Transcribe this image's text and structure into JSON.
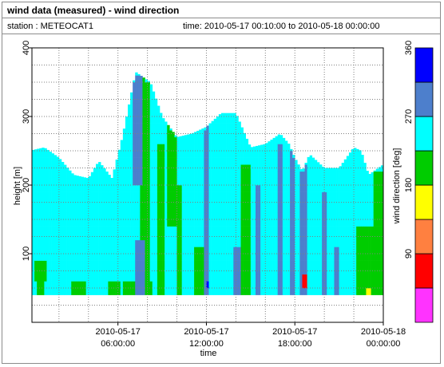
{
  "window": {
    "title": "wind data (measured) - wind direction",
    "station": "station : METEOCAT1",
    "time_range": "time: 2010-05-17 00:10:00 to 2010-05-18 00:00:00"
  },
  "chart_data": {
    "type": "heatmap",
    "xlabel": "time",
    "ylabel": "height [m]",
    "colorbar_label": "wind direction [deg]",
    "x_range": [
      "2010-05-17 00:10:00",
      "2010-05-18 00:00:00"
    ],
    "ylim": [
      0,
      400
    ],
    "y_ticks": [
      100,
      200,
      300,
      400
    ],
    "x_ticks": [
      {
        "line1": "2010-05-17",
        "line2": "06:00:00",
        "hour": 6
      },
      {
        "line1": "2010-05-17",
        "line2": "12:00:00",
        "hour": 12
      },
      {
        "line1": "2010-05-17",
        "line2": "18:00:00",
        "hour": 18
      },
      {
        "line1": "2010-05-18",
        "line2": "00:00:00",
        "hour": 24
      }
    ],
    "grid": true,
    "colorbar": {
      "range": [
        0,
        360
      ],
      "ticks": [
        90,
        180,
        270,
        360
      ],
      "bins": [
        {
          "from": 0,
          "to": 45,
          "color": "#ff33ff"
        },
        {
          "from": 45,
          "to": 90,
          "color": "#ff0000"
        },
        {
          "from": 90,
          "to": 135,
          "color": "#ff8040"
        },
        {
          "from": 135,
          "to": 180,
          "color": "#ffff00"
        },
        {
          "from": 180,
          "to": 225,
          "color": "#00cc00"
        },
        {
          "from": 225,
          "to": 270,
          "color": "#00ffff"
        },
        {
          "from": 270,
          "to": 315,
          "color": "#4d7fcc"
        },
        {
          "from": 315,
          "to": 360,
          "color": "#0000ff"
        }
      ]
    },
    "data": {
      "base_height_m": 40,
      "dominant_direction_deg": 250,
      "top_height_profile": {
        "hour": [
          0,
          1,
          2,
          3,
          4,
          4.7,
          5.6,
          6.3,
          7.2,
          8.2,
          9,
          10,
          11,
          12,
          13,
          14,
          15,
          16,
          17,
          17.6,
          18,
          18.5,
          19,
          20,
          21,
          22,
          22.5,
          23,
          24
        ],
        "height_m": [
          250,
          255,
          240,
          215,
          210,
          235,
          210,
          270,
          365,
          350,
          300,
          270,
          275,
          285,
          305,
          305,
          255,
          260,
          275,
          260,
          240,
          220,
          245,
          225,
          225,
          255,
          250,
          215,
          230
        ]
      },
      "patches": [
        {
          "hour": [
            0.3,
            1.1
          ],
          "height_m": [
            65,
            95
          ],
          "dir": 200
        },
        {
          "hour": [
            0.5,
            1.0
          ],
          "height_m": [
            45,
            65
          ],
          "dir": 200
        },
        {
          "hour": [
            2.8,
            3.8
          ],
          "height_m": [
            40,
            65
          ],
          "dir": 200
        },
        {
          "hour": [
            5.4,
            6.1
          ],
          "height_m": [
            40,
            60
          ],
          "dir": 200
        },
        {
          "hour": [
            6.3,
            8.4
          ],
          "height_m": [
            40,
            60
          ],
          "dir": 200
        },
        {
          "hour": [
            7.5,
            8.2
          ],
          "height_m": [
            60,
            360
          ],
          "dir": 200
        },
        {
          "hour": [
            8.6,
            9.2
          ],
          "height_m": [
            40,
            260
          ],
          "dir": 200
        },
        {
          "hour": [
            9.4,
            10.0
          ],
          "height_m": [
            140,
            330
          ],
          "dir": 200
        },
        {
          "hour": [
            10.0,
            10.3
          ],
          "height_m": [
            40,
            200
          ],
          "dir": 200
        },
        {
          "hour": [
            11.2,
            12.0
          ],
          "height_m": [
            40,
            110
          ],
          "dir": 200
        },
        {
          "hour": [
            14.4,
            15.0
          ],
          "height_m": [
            40,
            230
          ],
          "dir": 200
        },
        {
          "hour": [
            22.2,
            24.0
          ],
          "height_m": [
            40,
            140
          ],
          "dir": 200
        },
        {
          "hour": [
            23.4,
            24.0
          ],
          "height_m": [
            140,
            220
          ],
          "dir": 200
        },
        {
          "hour": [
            7.0,
            7.6
          ],
          "height_m": [
            200,
            370
          ],
          "dir": 290
        },
        {
          "hour": [
            7.2,
            7.8
          ],
          "height_m": [
            40,
            120
          ],
          "dir": 290
        },
        {
          "hour": [
            11.9,
            12.2
          ],
          "height_m": [
            40,
            360
          ],
          "dir": 290
        },
        {
          "hour": [
            13.9,
            14.3
          ],
          "height_m": [
            40,
            110
          ],
          "dir": 290
        },
        {
          "hour": [
            15.3,
            15.7
          ],
          "height_m": [
            40,
            200
          ],
          "dir": 290
        },
        {
          "hour": [
            16.9,
            17.2
          ],
          "height_m": [
            40,
            260
          ],
          "dir": 290
        },
        {
          "hour": [
            17.7,
            18.0
          ],
          "height_m": [
            40,
            260
          ],
          "dir": 290
        },
        {
          "hour": [
            18.3,
            18.8
          ],
          "height_m": [
            40,
            250
          ],
          "dir": 290
        },
        {
          "hour": [
            19.8,
            20.2
          ],
          "height_m": [
            40,
            190
          ],
          "dir": 290
        },
        {
          "hour": [
            20.6,
            21.0
          ],
          "height_m": [
            40,
            110
          ],
          "dir": 290
        },
        {
          "hour": [
            12.0,
            12.2
          ],
          "height_m": [
            55,
            65
          ],
          "dir": 330
        },
        {
          "hour": [
            18.5,
            18.8
          ],
          "height_m": [
            55,
            75
          ],
          "dir": 80
        },
        {
          "hour": [
            22.9,
            23.1
          ],
          "height_m": [
            40,
            50
          ],
          "dir": 155
        }
      ]
    }
  }
}
